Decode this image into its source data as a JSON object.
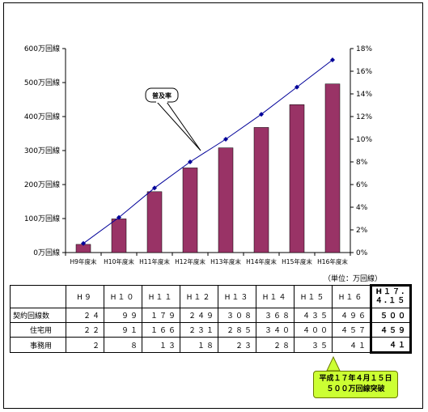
{
  "chart_data": {
    "type": "bar+line",
    "categories": [
      "H9年度末",
      "H10年度末",
      "H11年度末",
      "H12年度末",
      "H13年度末",
      "H14年度末",
      "H15年度末",
      "H16年度末"
    ],
    "series": [
      {
        "values": [
          24,
          99,
          179,
          249,
          308,
          368,
          435,
          496
        ],
        "axis": "left",
        "kind": "bar",
        "color": "#993366"
      },
      {
        "name": "普及率",
        "values": [
          0.8,
          3.1,
          5.7,
          8.0,
          10.0,
          12.2,
          14.6,
          17.0
        ],
        "axis": "right",
        "kind": "line",
        "color": "#000099"
      }
    ],
    "y_left": {
      "ticks": [
        "0万回線",
        "100万回線",
        "200万回線",
        "300万回線",
        "400万回線",
        "500万回線",
        "600万回線"
      ],
      "ylim": [
        0,
        600
      ]
    },
    "y_right": {
      "ticks": [
        "0%",
        "2%",
        "4%",
        "6%",
        "8%",
        "10%",
        "12%",
        "14%",
        "16%",
        "18%"
      ],
      "ylim": [
        0,
        18
      ]
    },
    "annotation": "普及率",
    "grid": false
  },
  "table": {
    "unit_note": "（単位：万回線）",
    "headers": [
      "",
      "H９",
      "H１０",
      "H１１",
      "H１２",
      "H１３",
      "H１４",
      "H１５",
      "H１６",
      "H１７.\n４.１５"
    ],
    "rows": [
      {
        "label": "契約回線数",
        "values": [
          "２４",
          "９９",
          "１７９",
          "２４９",
          "３０８",
          "３６８",
          "４３５",
          "４９６"
        ],
        "h17": "５００"
      },
      {
        "label": "住宅用",
        "values": [
          "２２",
          "９１",
          "１６６",
          "２３１",
          "２８５",
          "３４０",
          "４００",
          "４５７"
        ],
        "h17": "４５９"
      },
      {
        "label": "事務用",
        "values": [
          "２",
          "８",
          "１３",
          "１８",
          "２３",
          "２８",
          "３５",
          "４１"
        ],
        "h17": "４１"
      }
    ]
  },
  "callout": {
    "line1": "平成１７年４月１５日",
    "line2": "５００万回線突破",
    "color": "#ccff33"
  }
}
